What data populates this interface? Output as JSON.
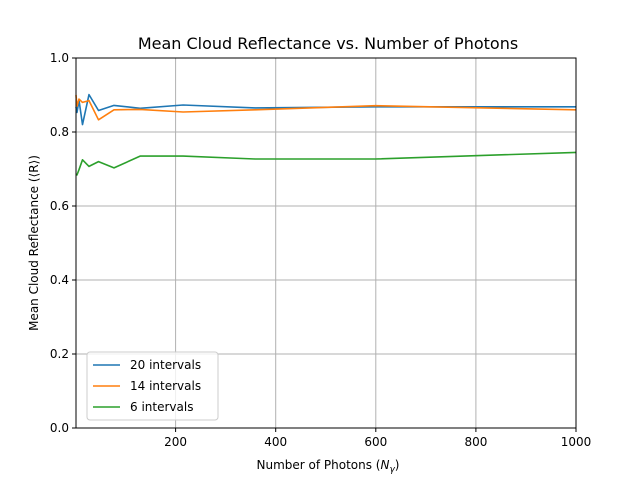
{
  "chart_data": {
    "type": "line",
    "title": "Mean Cloud Reflectance vs. Number of Photons",
    "xlabel_prefix": "Number of Photons (",
    "xlabel_symbol": "N",
    "xlabel_sub": "γ",
    "xlabel_suffix": ")",
    "ylabel": "Mean Cloud Reflectance (⟨R⟩)",
    "xlim": [
      1,
      1000
    ],
    "ylim": [
      0.0,
      1.0
    ],
    "xticks": [
      200,
      400,
      600,
      800,
      1000
    ],
    "yticks": [
      0.0,
      0.2,
      0.4,
      0.6,
      0.8,
      1.0
    ],
    "xtick_labels": [
      "200",
      "400",
      "600",
      "800",
      "1000"
    ],
    "ytick_labels": [
      "0.0",
      "0.2",
      "0.4",
      "0.6",
      "0.8",
      "1.0"
    ],
    "grid": true,
    "legend_position": "lower-left",
    "series": [
      {
        "name": "20 intervals",
        "color": "#1f77b4",
        "x": [
          1,
          3,
          7,
          14,
          27,
          46,
          77,
          129,
          215,
          359,
          599,
          1000
        ],
        "y": [
          0.868,
          0.853,
          0.886,
          0.82,
          0.901,
          0.858,
          0.872,
          0.864,
          0.873,
          0.865,
          0.868,
          0.868
        ]
      },
      {
        "name": "14 intervals",
        "color": "#ff7f0e",
        "x": [
          1,
          3,
          7,
          14,
          27,
          46,
          77,
          129,
          215,
          359,
          599,
          1000
        ],
        "y": [
          0.9,
          0.87,
          0.889,
          0.88,
          0.885,
          0.833,
          0.86,
          0.861,
          0.854,
          0.86,
          0.871,
          0.86
        ]
      },
      {
        "name": "6 intervals",
        "color": "#2ca02c",
        "x": [
          1,
          3,
          7,
          14,
          27,
          46,
          77,
          129,
          215,
          359,
          599,
          1000
        ],
        "y": [
          0.685,
          0.684,
          0.698,
          0.725,
          0.707,
          0.72,
          0.703,
          0.735,
          0.735,
          0.727,
          0.727,
          0.745
        ]
      }
    ]
  }
}
